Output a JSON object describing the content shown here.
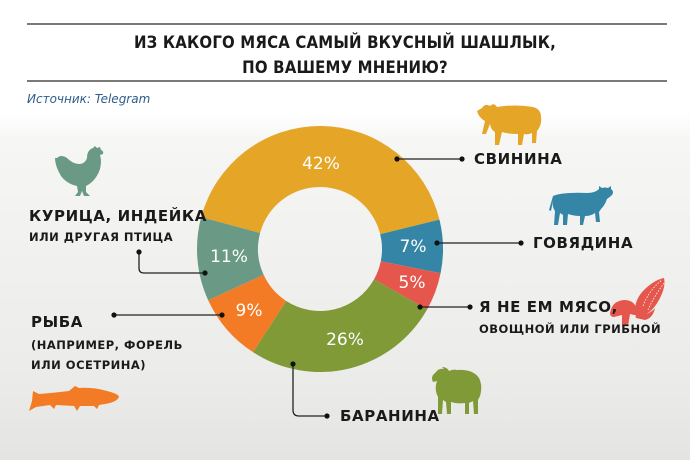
{
  "header": {
    "title_line1": "ИЗ КАКОГО МЯСА САМЫЙ ВКУСНЫЙ ШАШЛЫК,",
    "title_line2": "ПО ВАШЕМУ МНЕНИЮ?",
    "source": "Источник: Telegram"
  },
  "labels": {
    "pork": "СВИНИНА",
    "beef": "ГОВЯДИНА",
    "veg_line1": "Я НЕ ЕМ МЯСО,",
    "veg_line2": "ОВОЩНОЙ ИЛИ ГРИБНОЙ",
    "lamb": "БАРАНИНА",
    "fish_line1": "РЫБА",
    "fish_line2": "(НАПРИМЕР, ФОРЕЛЬ",
    "fish_line3": "ИЛИ ОСЕТРИНА)",
    "poultry_line1": "КУРИЦА, ИНДЕЙКА",
    "poultry_line2": "ИЛИ ДРУГАЯ ПТИЦА"
  },
  "percent_labels": {
    "pork": "42%",
    "beef": "7%",
    "veg": "5%",
    "lamb": "26%",
    "fish": "9%",
    "poultry": "11%"
  },
  "icons": {
    "pork": "pig-icon",
    "beef": "cow-icon",
    "veg": "mushroom-corn-icon",
    "lamb": "sheep-icon",
    "fish": "fish-icon",
    "poultry": "chicken-icon"
  },
  "colors": {
    "pork": "#e5a526",
    "beef": "#3585a6",
    "veg": "#e5574c",
    "lamb": "#7f9a37",
    "fish": "#f47b25",
    "poultry": "#6a9a85",
    "title_rule": "#7a7a7a",
    "source_text": "#2f5c8a"
  },
  "chart_data": {
    "type": "pie",
    "title": "ИЗ КАКОГО МЯСА САМЫЙ ВКУСНЫЙ ШАШЛЫК, ПО ВАШЕМУ МНЕНИЮ?",
    "subtitle": "Источник: Telegram",
    "donut": true,
    "categories": [
      "Свинина",
      "Говядина",
      "Я не ем мясо, овощной или грибной",
      "Баранина",
      "Рыба (например, форель или осетрина)",
      "Курица, индейка или другая птица"
    ],
    "values": [
      42,
      7,
      5,
      26,
      9,
      11
    ],
    "unit": "%",
    "colors": [
      "#e5a526",
      "#3585a6",
      "#e5574c",
      "#7f9a37",
      "#f47b25",
      "#6a9a85"
    ],
    "start_angle_deg_clockwise_from_top": -75,
    "legend_position": "callouts"
  }
}
